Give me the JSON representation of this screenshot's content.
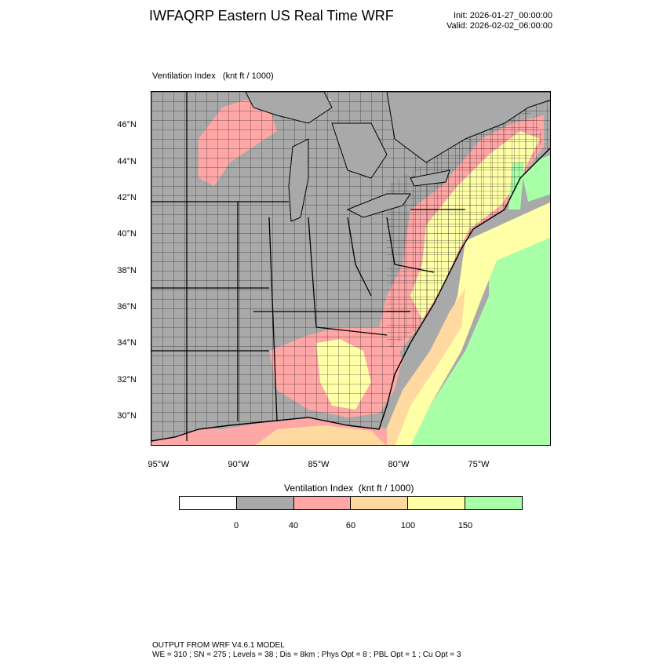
{
  "header": {
    "title": "IWFAQRP Eastern US Real Time WRF",
    "init": "Init: 2026-01-27_00:00:00",
    "valid": "Valid: 2026-02-02_06:00:00"
  },
  "field": {
    "name": "Ventilation Index",
    "units": "(knt ft / 1000)"
  },
  "map": {
    "lat_labels": [
      "46°N",
      "44°N",
      "42°N",
      "40°N",
      "38°N",
      "36°N",
      "34°N",
      "32°N",
      "30°N"
    ],
    "lon_labels": [
      "95°W",
      "90°W",
      "85°W",
      "80°W",
      "75°W"
    ],
    "colors": {
      "land_low": "#a9a9a9",
      "water": "#a9a9a9",
      "pink": "#ffa6a6",
      "tan": "#ffd9a0",
      "yellow": "#ffffa8",
      "green": "#a8ffa8"
    }
  },
  "legend": {
    "title": "Ventilation Index",
    "units": "(knt ft / 1000)",
    "boxes": [
      {
        "color": "#ffffff"
      },
      {
        "color": "#a9a9a9"
      },
      {
        "color": "#ffa6a6"
      },
      {
        "color": "#ffd9a0"
      },
      {
        "color": "#ffffa8"
      },
      {
        "color": "#a8ffa8"
      }
    ],
    "ticks": [
      "0",
      "40",
      "60",
      "100",
      "150"
    ]
  },
  "footer": {
    "line1": "OUTPUT FROM WRF V4.6.1 MODEL",
    "line2": "WE = 310 ; SN = 275 ; Levels = 38 ; Dis = 8km ; Phys Opt = 8 ; PBL Opt = 1 ; Cu Opt = 3"
  }
}
